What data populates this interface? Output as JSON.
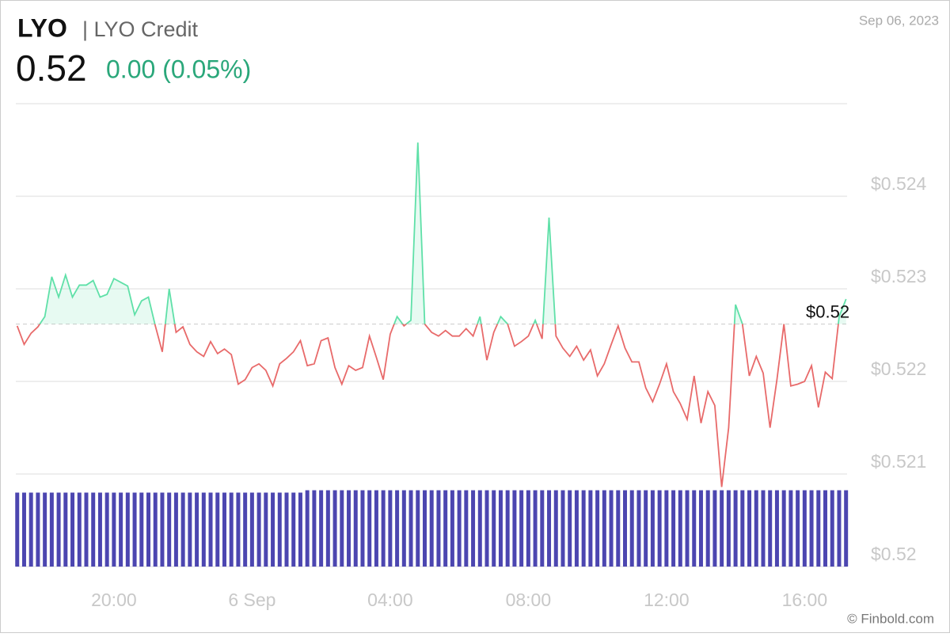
{
  "chart_data": {
    "type": "line",
    "title": "LYO",
    "subtitle": "| LYO Credit",
    "price": 0.52,
    "change": "0.00 (0.05%)",
    "date": "Sep 06, 2023",
    "source": "© Finbold.com",
    "last_value_label": "$0.52",
    "baseline": 0.52262,
    "up_color": "#5fe0a8",
    "down_color": "#e86a6a",
    "grid": true,
    "xlim": [
      -6.84,
      17.23
    ],
    "xticks": [
      {
        "value": -4,
        "label": "20:00"
      },
      {
        "value": 0,
        "label": "6 Sep"
      },
      {
        "value": 4,
        "label": "04:00"
      },
      {
        "value": 8,
        "label": "08:00"
      },
      {
        "value": 12,
        "label": "12:00"
      },
      {
        "value": 16,
        "label": "16:00"
      }
    ],
    "ylim": [
      0.52,
      0.525
    ],
    "yticks": [
      {
        "value": 0.52,
        "label": "$0.52"
      },
      {
        "value": 0.521,
        "label": "$0.521"
      },
      {
        "value": 0.522,
        "label": "$0.522"
      },
      {
        "value": 0.523,
        "label": "$0.523"
      },
      {
        "value": 0.524,
        "label": "$0.524"
      }
    ],
    "x": [
      -6.8,
      -6.6,
      -6.4,
      -6.2,
      -6,
      -5.8,
      -5.6,
      -5.4,
      -5.2,
      -5,
      -4.8,
      -4.6,
      -4.4,
      -4.2,
      -4,
      -3.8,
      -3.6,
      -3.4,
      -3.2,
      -3,
      -2.8,
      -2.6,
      -2.4,
      -2.2,
      -2,
      -1.8,
      -1.6,
      -1.4,
      -1.2,
      -1,
      -0.8,
      -0.6,
      -0.4,
      -0.2,
      0,
      0.2,
      0.4,
      0.6,
      0.8,
      1,
      1.2,
      1.4,
      1.6,
      1.8,
      2,
      2.2,
      2.4,
      2.6,
      2.8,
      3,
      3.2,
      3.4,
      3.6,
      3.8,
      4,
      4.2,
      4.4,
      4.6,
      4.8,
      5,
      5.2,
      5.4,
      5.6,
      5.8,
      6,
      6.2,
      6.4,
      6.6,
      6.8,
      7,
      7.2,
      7.4,
      7.6,
      7.8,
      8,
      8.2,
      8.4,
      8.6,
      8.8,
      9,
      9.2,
      9.4,
      9.6,
      9.8,
      10,
      10.2,
      10.4,
      10.6,
      10.8,
      11,
      11.2,
      11.4,
      11.6,
      11.8,
      12,
      12.2,
      12.4,
      12.6,
      12.8,
      13,
      13.2,
      13.4,
      13.6,
      13.8,
      14,
      14.2,
      14.4,
      14.6,
      14.8,
      15,
      15.2,
      15.4,
      15.6,
      15.8,
      16,
      16.2,
      16.4,
      16.6,
      16.8,
      17,
      17.2
    ],
    "series": [
      {
        "name": "LYO",
        "values": [
          0.5226,
          0.5224,
          0.52252,
          0.52259,
          0.5227,
          0.52313,
          0.52291,
          0.52315,
          0.52291,
          0.52304,
          0.52304,
          0.52309,
          0.52291,
          0.52294,
          0.52311,
          0.52307,
          0.52303,
          0.52272,
          0.52287,
          0.52291,
          0.5226,
          0.52232,
          0.523,
          0.52253,
          0.52259,
          0.5224,
          0.52232,
          0.52227,
          0.52243,
          0.5223,
          0.52235,
          0.52229,
          0.52197,
          0.52202,
          0.52215,
          0.52219,
          0.52212,
          0.52195,
          0.52219,
          0.52225,
          0.52232,
          0.52244,
          0.52217,
          0.52219,
          0.52244,
          0.52247,
          0.52215,
          0.52197,
          0.52217,
          0.52212,
          0.52215,
          0.52249,
          0.52226,
          0.52202,
          0.52251,
          0.5227,
          0.5226,
          0.52266,
          0.52458,
          0.52262,
          0.52253,
          0.52249,
          0.52255,
          0.52249,
          0.52249,
          0.52257,
          0.52249,
          0.5227,
          0.52223,
          0.52253,
          0.5227,
          0.52262,
          0.52238,
          0.52243,
          0.52249,
          0.52266,
          0.52246,
          0.52377,
          0.52249,
          0.52236,
          0.52227,
          0.52238,
          0.52223,
          0.52234,
          0.52206,
          0.52219,
          0.5224,
          0.5226,
          0.52236,
          0.52221,
          0.52221,
          0.52193,
          0.52178,
          0.52197,
          0.52219,
          0.52189,
          0.52176,
          0.52159,
          0.52206,
          0.52155,
          0.52189,
          0.52174,
          0.52086,
          0.5215,
          0.52283,
          0.52262,
          0.52206,
          0.52227,
          0.52209,
          0.5215,
          0.52202,
          0.52262,
          0.52195,
          0.52197,
          0.522,
          0.52217,
          0.52172,
          0.5221,
          0.52203,
          0.5227,
          0.52289
        ]
      }
    ],
    "volume": {
      "color": "#4c46b0",
      "y2lim": [
        0,
        1
      ],
      "values": [
        0.94,
        0.94,
        0.94,
        0.94,
        0.94,
        0.94,
        0.94,
        0.94,
        0.94,
        0.94,
        0.94,
        0.94,
        0.94,
        0.94,
        0.94,
        0.94,
        0.94,
        0.94,
        0.94,
        0.94,
        0.94,
        0.94,
        0.94,
        0.94,
        0.94,
        0.94,
        0.94,
        0.94,
        0.94,
        0.94,
        0.94,
        0.94,
        0.94,
        0.94,
        0.94,
        0.94,
        0.94,
        0.94,
        0.94,
        0.94,
        0.94,
        0.94,
        0.97,
        0.97,
        0.97,
        0.97,
        0.97,
        0.97,
        0.97,
        0.97,
        0.97,
        0.97,
        0.97,
        0.97,
        0.97,
        0.97,
        0.97,
        0.97,
        0.97,
        0.97,
        0.97,
        0.97,
        0.97,
        0.97,
        0.97,
        0.97,
        0.97,
        0.97,
        0.97,
        0.97,
        0.97,
        0.97,
        0.97,
        0.97,
        0.97,
        0.97,
        0.97,
        0.97,
        0.97,
        0.97,
        0.97,
        0.97,
        0.97,
        0.97,
        0.97,
        0.97,
        0.97,
        0.97,
        0.97,
        0.97,
        0.97,
        0.97,
        0.97,
        0.97,
        0.97,
        0.97,
        0.97,
        0.97,
        0.97,
        0.97,
        0.97,
        0.97,
        0.97,
        0.97,
        0.97,
        0.97,
        0.97,
        0.97,
        0.97,
        0.97,
        0.97,
        0.97,
        0.97,
        0.97,
        0.97,
        0.97,
        0.97,
        0.97,
        0.97,
        0.97,
        0.97
      ]
    }
  }
}
